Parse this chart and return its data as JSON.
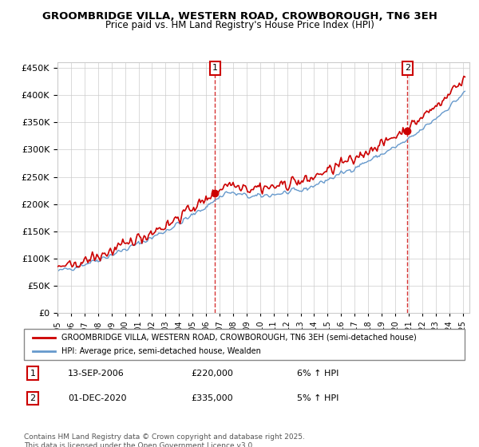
{
  "title": "GROOMBRIDGE VILLA, WESTERN ROAD, CROWBOROUGH, TN6 3EH",
  "subtitle": "Price paid vs. HM Land Registry's House Price Index (HPI)",
  "legend_line1": "GROOMBRIDGE VILLA, WESTERN ROAD, CROWBOROUGH, TN6 3EH (semi-detached house)",
  "legend_line2": "HPI: Average price, semi-detached house, Wealden",
  "annotation1_label": "1",
  "annotation1_date": "13-SEP-2006",
  "annotation1_price": "£220,000",
  "annotation1_hpi": "6% ↑ HPI",
  "annotation2_label": "2",
  "annotation2_date": "01-DEC-2020",
  "annotation2_price": "£335,000",
  "annotation2_hpi": "5% ↑ HPI",
  "footer": "Contains HM Land Registry data © Crown copyright and database right 2025.\nThis data is licensed under the Open Government Licence v3.0.",
  "ylim": [
    0,
    460000
  ],
  "yticks": [
    0,
    50000,
    100000,
    150000,
    200000,
    250000,
    300000,
    350000,
    400000,
    450000
  ],
  "line_color_red": "#cc0000",
  "line_color_blue": "#6699cc",
  "vline_color": "#cc0000",
  "background_color": "#ffffff",
  "grid_color": "#cccccc",
  "annotation_box_color": "#cc0000"
}
